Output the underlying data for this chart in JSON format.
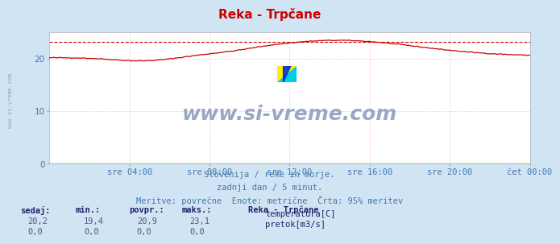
{
  "title": "Reka - Trpčane",
  "bg_color": "#d0e4f4",
  "plot_bg_color": "#ffffff",
  "grid_color": "#ffaaaa",
  "grid_linestyle": ":",
  "xlabel_ticks": [
    "sre 04:00",
    "sre 08:00",
    "sre 12:00",
    "sre 16:00",
    "sre 20:00",
    "čet 00:00"
  ],
  "xlabel_tick_positions": [
    0.167,
    0.333,
    0.5,
    0.667,
    0.833,
    1.0
  ],
  "ylim": [
    0,
    25
  ],
  "yticks": [
    0,
    10,
    20
  ],
  "title_color": "#cc0000",
  "title_fontsize": 11,
  "watermark_text": "www.si-vreme.com",
  "watermark_color": "#8899bb",
  "watermark_fontsize": 18,
  "side_watermark": "www.si-vreme.com",
  "side_watermark_color": "#8899bb",
  "subtitle_lines": [
    "Slovenija / reke in morje.",
    "zadnji dan / 5 minut.",
    "Meritve: povrečne  Enote: metrične  Črta: 95% meritev"
  ],
  "subtitle_color": "#4477aa",
  "subtitle_fontsize": 7.5,
  "legend_title": "Reka - Trpčane",
  "legend_items": [
    {
      "label": "temperatura[C]",
      "color": "#cc0000"
    },
    {
      "label": "pretok[m3/s]",
      "color": "#00bb00"
    }
  ],
  "stats_headers": [
    "sedaj:",
    "min.:",
    "povpr.:",
    "maks.:"
  ],
  "stats_temp": [
    "20,2",
    "19,4",
    "20,9",
    "23,1"
  ],
  "stats_flow": [
    "0,0",
    "0,0",
    "0,0",
    "0,0"
  ],
  "stats_color": "#222266",
  "stats_fontsize": 7.5,
  "dashed_line_y": 23.1,
  "dashed_line_color": "#cc0000",
  "temp_line_color": "#cc0000",
  "flow_line_color": "#00bb00",
  "axis_label_color": "#4477aa",
  "axis_label_fontsize": 7.5,
  "n_points": 288
}
